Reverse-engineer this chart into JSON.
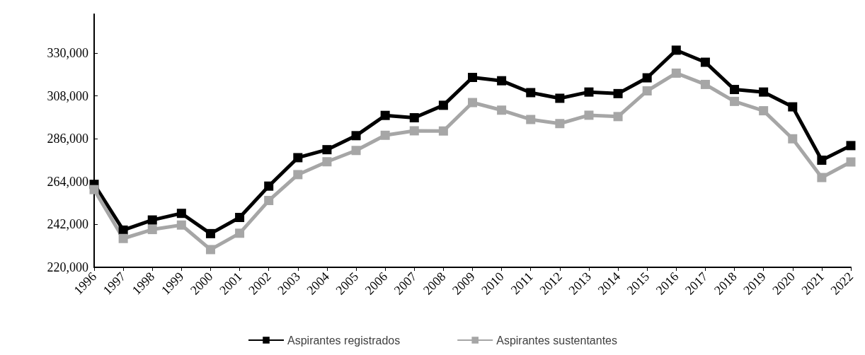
{
  "chart_data": {
    "type": "line",
    "categories": [
      "1996",
      "1997",
      "1998",
      "1999",
      "2000",
      "2001",
      "2002",
      "2003",
      "2004",
      "2005",
      "2006",
      "2007",
      "2008",
      "2009",
      "2010",
      "2011",
      "2012",
      "2013",
      "2014",
      "2015",
      "2016",
      "2017",
      "2018",
      "2019",
      "2020",
      "2021",
      "2022"
    ],
    "series": [
      {
        "name": "Aspirantes registrados",
        "color": "#000000",
        "values": [
          262600,
          239100,
          244300,
          247700,
          237300,
          245600,
          261700,
          276300,
          280400,
          287600,
          298000,
          296800,
          303200,
          317500,
          315800,
          309700,
          306800,
          310000,
          309200,
          317300,
          331500,
          325300,
          311300,
          310000,
          302400,
          275000,
          282500
        ]
      },
      {
        "name": "Aspirantes sustentantes",
        "color": "#a6a6a6",
        "values": [
          259900,
          234800,
          239400,
          241700,
          229100,
          237500,
          254300,
          267600,
          274200,
          280000,
          287800,
          290100,
          290000,
          304600,
          300700,
          295900,
          293800,
          298100,
          297400,
          310600,
          319700,
          313900,
          305200,
          300400,
          286000,
          266100,
          274100
        ]
      }
    ],
    "ylim": [
      220000,
      350000
    ],
    "yticks": [
      {
        "value": 220000,
        "label": "220,000"
      },
      {
        "value": 242000,
        "label": "242,000"
      },
      {
        "value": 264000,
        "label": "264,000"
      },
      {
        "value": 286000,
        "label": "286,000"
      },
      {
        "value": 308000,
        "label": "308,000"
      },
      {
        "value": 330000,
        "label": "330,000"
      }
    ],
    "grid": false,
    "legend": "bottom",
    "marker": "square",
    "line_style": "solid"
  }
}
